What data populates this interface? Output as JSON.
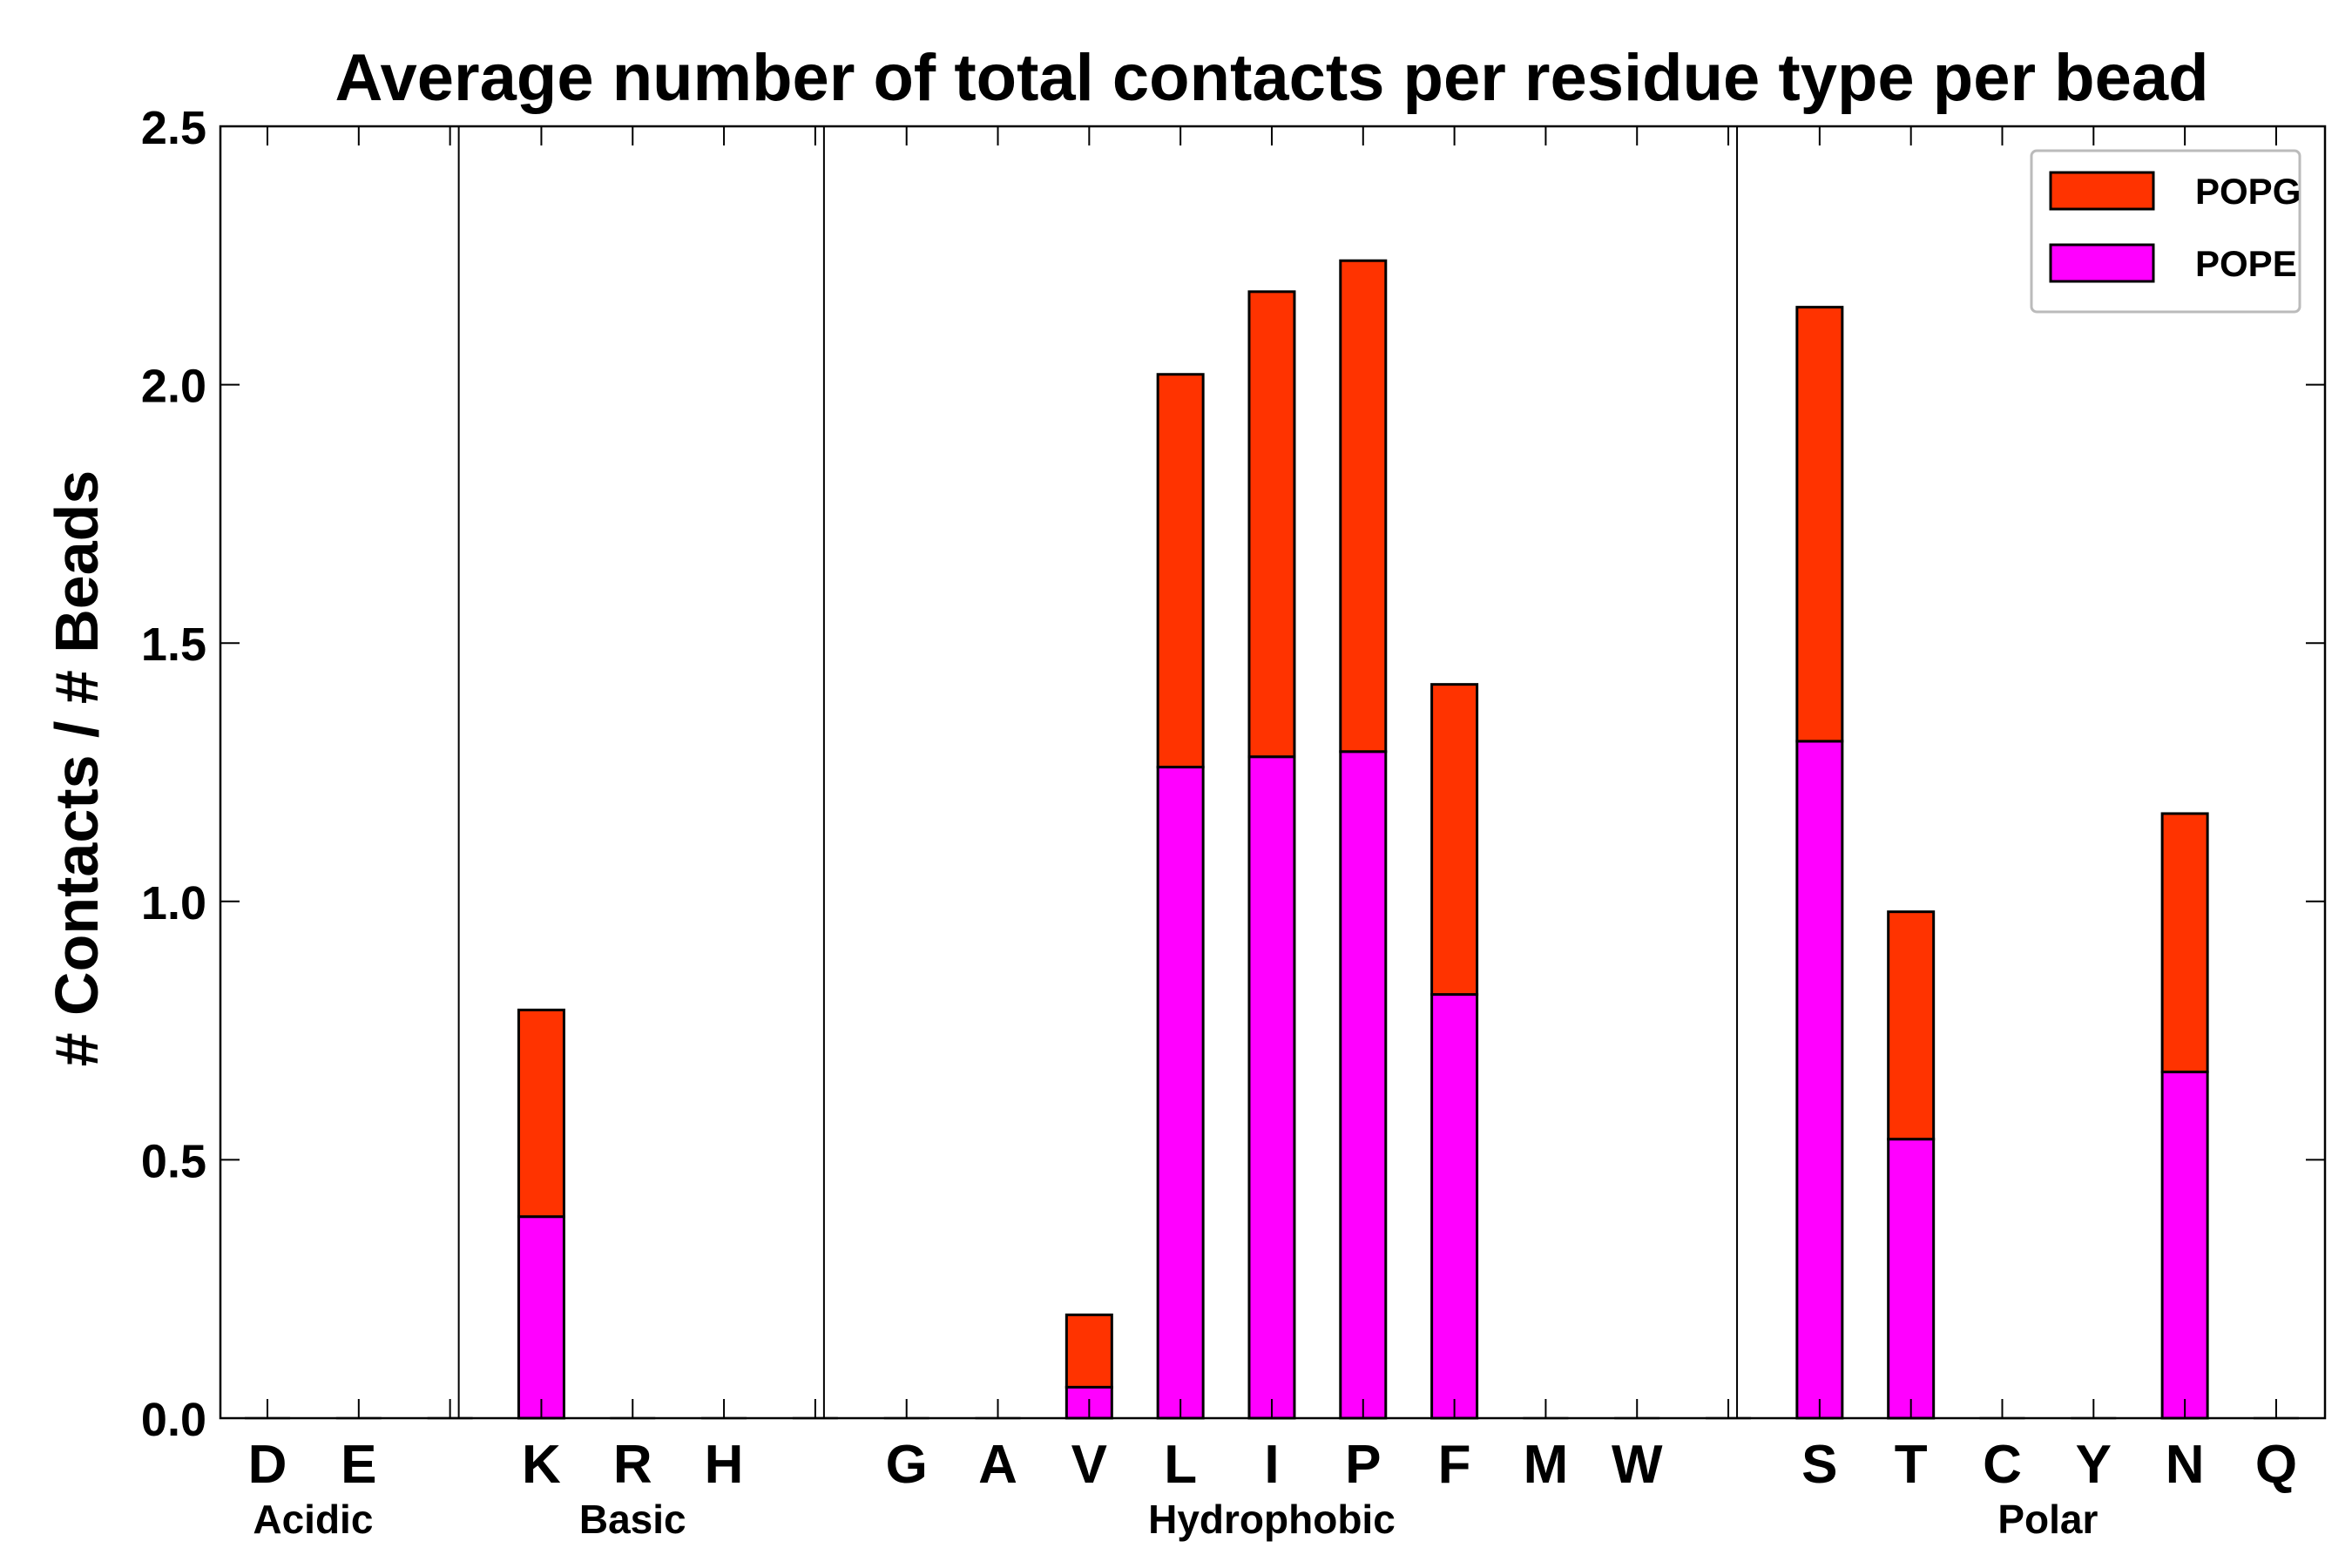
{
  "chart_data": {
    "type": "bar",
    "stacked": true,
    "title": "Average number of total contacts per residue type per bead",
    "xlabel": "",
    "ylabel": "# Contacts / # Beads",
    "ylim": [
      0,
      2.5
    ],
    "yticks": [
      "0.0",
      "0.5",
      "1.0",
      "1.5",
      "2.0",
      "2.5"
    ],
    "categories": [
      "D",
      "E",
      "",
      "K",
      "R",
      "H",
      "",
      "G",
      "A",
      "V",
      "L",
      "I",
      "P",
      "F",
      "M",
      "W",
      "",
      "S",
      "T",
      "C",
      "Y",
      "N",
      "Q"
    ],
    "groups": [
      {
        "name": "Acidic",
        "members": [
          "D",
          "E"
        ]
      },
      {
        "name": "Basic",
        "members": [
          "K",
          "R",
          "H"
        ]
      },
      {
        "name": "Hydrophobic",
        "members": [
          "G",
          "A",
          "V",
          "L",
          "I",
          "P",
          "F",
          "M",
          "W"
        ]
      },
      {
        "name": "Polar",
        "members": [
          "S",
          "T",
          "C",
          "Y",
          "N",
          "Q"
        ]
      }
    ],
    "series": [
      {
        "name": "POPE",
        "color": "#ff00ff",
        "values": [
          0,
          0,
          0,
          0.39,
          0,
          0,
          0,
          0,
          0,
          0.06,
          1.26,
          1.28,
          1.29,
          0.82,
          0,
          0,
          0,
          1.31,
          0.54,
          0,
          0,
          0.67,
          0
        ]
      },
      {
        "name": "POPG",
        "color": "#ff3300",
        "values": [
          0,
          0,
          0,
          0.4,
          0,
          0,
          0,
          0,
          0,
          0.14,
          0.76,
          0.9,
          0.95,
          0.6,
          0,
          0,
          0,
          0.84,
          0.44,
          0,
          0,
          0.5,
          0
        ]
      }
    ],
    "legend": {
      "position": "top-right",
      "order": [
        "POPG",
        "POPE"
      ]
    },
    "grid": false
  }
}
